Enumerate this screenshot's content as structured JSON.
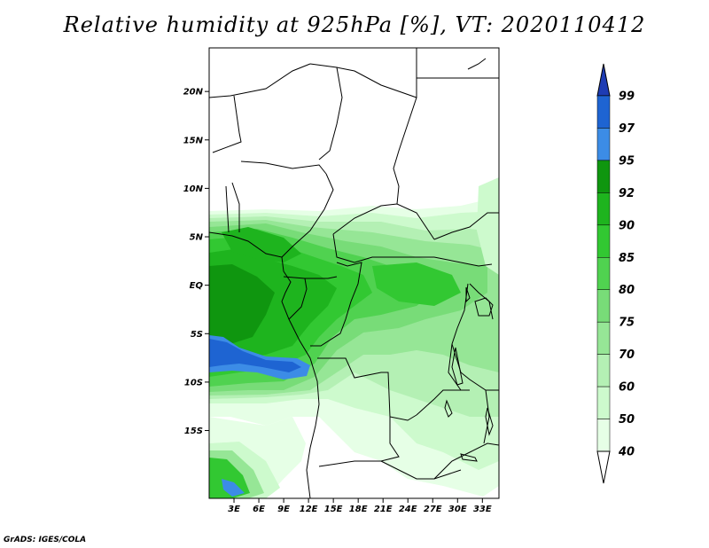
{
  "title": "Relative humidity at 925hPa [%], VT: 2020110412",
  "credit": "GrADS: IGES/COLA",
  "map": {
    "lon_range": [
      0,
      35
    ],
    "lat_range": [
      -22,
      24.5
    ],
    "x_ticks": [
      {
        "value": 3,
        "label": "3E"
      },
      {
        "value": 6,
        "label": "6E"
      },
      {
        "value": 9,
        "label": "9E"
      },
      {
        "value": 12,
        "label": "12E"
      },
      {
        "value": 15,
        "label": "15E"
      },
      {
        "value": 18,
        "label": "18E"
      },
      {
        "value": 21,
        "label": "21E"
      },
      {
        "value": 24,
        "label": "24E"
      },
      {
        "value": 27,
        "label": "27E"
      },
      {
        "value": 30,
        "label": "30E"
      },
      {
        "value": 33,
        "label": "33E"
      }
    ],
    "y_ticks": [
      {
        "value": 20,
        "label": "20N"
      },
      {
        "value": 15,
        "label": "15N"
      },
      {
        "value": 10,
        "label": "10N"
      },
      {
        "value": 5,
        "label": "5N"
      },
      {
        "value": 0,
        "label": "EQ"
      },
      {
        "value": -5,
        "label": "5S"
      },
      {
        "value": -10,
        "label": "10S"
      },
      {
        "value": -15,
        "label": "15S"
      }
    ]
  },
  "colorbar": {
    "levels": [
      "99",
      "97",
      "95",
      "92",
      "90",
      "85",
      "80",
      "75",
      "70",
      "60",
      "50",
      "40"
    ],
    "colors": [
      "#1e64d2",
      "#3c8ce6",
      "#0f960f",
      "#1eb41e",
      "#32c832",
      "#50d250",
      "#78dc78",
      "#96e696",
      "#b4f0b4",
      "#cdfacd",
      "#e6ffe6"
    ],
    "top_arrow_color": "#1e3cb4",
    "bottom_arrow_color": "#ffffff"
  }
}
